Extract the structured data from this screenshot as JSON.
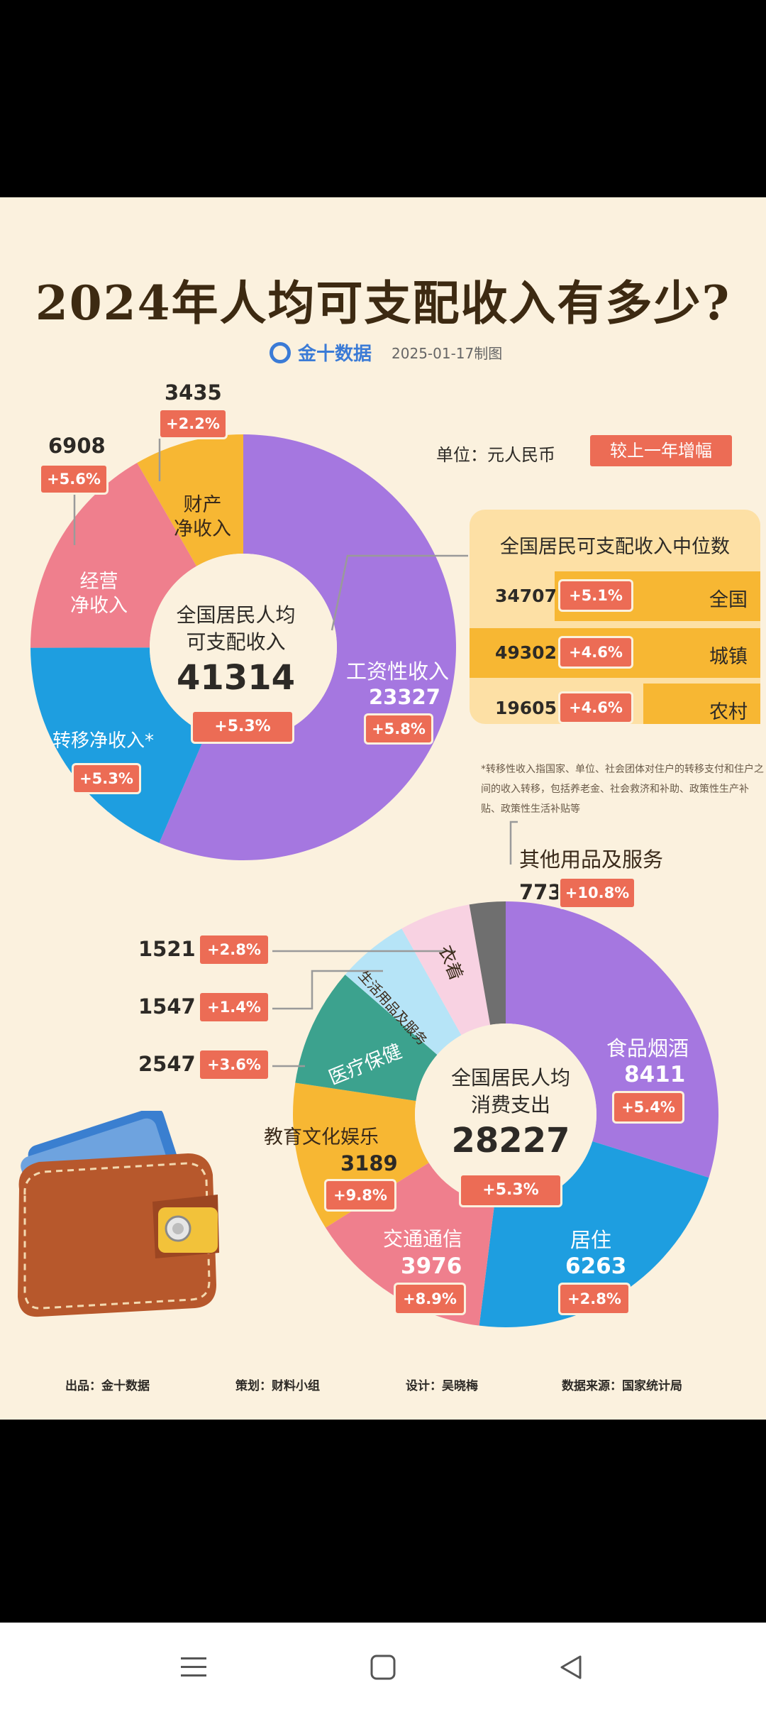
{
  "title": "2024年人均可支配收入有多少?",
  "brand": {
    "name": "金十数据",
    "date": "2025-01-17制图"
  },
  "legend": {
    "unit": "单位：元人民币",
    "growth_label": "较上一年增幅"
  },
  "income_center": {
    "line1": "全国居民人均",
    "line2": "可支配收入",
    "value": "41314",
    "pct": "+5.3%"
  },
  "median": {
    "title": "全国居民可支配收入中位数",
    "rows": [
      {
        "value": "34707",
        "pct": "+5.1%",
        "name": "全国"
      },
      {
        "value": "49302",
        "pct": "+4.6%",
        "name": "城镇"
      },
      {
        "value": "19605",
        "pct": "+4.6%",
        "name": "农村"
      }
    ]
  },
  "footnote": "*转移性收入指国家、单位、社会团体对住户的转移支付和住户之间的收入转移，包括养老金、社会救济和补助、政策性生产补贴、政策性生活补贴等",
  "spend_center": {
    "line1": "全国居民人均",
    "line2": "消费支出",
    "value": "28227",
    "pct": "+5.3%"
  },
  "footer": {
    "producer": "出品：金十数据",
    "planner": "策划：财料小组",
    "designer": "设计：吴晓梅",
    "source": "数据来源：国家统计局"
  },
  "colors": {
    "purple": "#a577e0",
    "blue": "#1e9ee0",
    "pink": "#ef7f8d",
    "orange": "#f7b733",
    "teal": "#3ca28e",
    "lightblue": "#b6e4f7",
    "lightpink": "#f8d2e2",
    "gray": "#6f6f6f",
    "tag": "#ec6c55",
    "background": "#fbf1de"
  },
  "chart_data": [
    {
      "type": "pie",
      "title": "全国居民人均可支配收入",
      "total": 41314,
      "total_growth": "+5.3%",
      "slices": [
        {
          "label": "工资性收入",
          "value": 23327,
          "growth": "+5.8%",
          "value_label": "23327"
        },
        {
          "label": "转移净收入*",
          "value": 7644,
          "growth": "+5.3%",
          "value_label": ""
        },
        {
          "label": "经营净收入",
          "value": 6908,
          "growth": "+5.6%",
          "value_label": "6908"
        },
        {
          "label": "财产净收入",
          "value": 3435,
          "growth": "+2.2%",
          "value_label": "3435"
        }
      ]
    },
    {
      "type": "pie",
      "title": "全国居民人均消费支出",
      "total": 28227,
      "total_growth": "+5.3%",
      "slices": [
        {
          "label": "食品烟酒",
          "value": 8411,
          "growth": "+5.4%",
          "value_label": "8411"
        },
        {
          "label": "居住",
          "value": 6263,
          "growth": "+2.8%",
          "value_label": "6263"
        },
        {
          "label": "交通通信",
          "value": 3976,
          "growth": "+8.9%",
          "value_label": "3976"
        },
        {
          "label": "教育文化娱乐",
          "value": 3189,
          "growth": "+9.8%",
          "value_label": "3189"
        },
        {
          "label": "医疗保健",
          "value": 2547,
          "growth": "+3.6%",
          "value_label": "2547"
        },
        {
          "label": "生活用品及服务",
          "value": 1547,
          "growth": "+1.4%",
          "value_label": "1547"
        },
        {
          "label": "衣着",
          "value": 1521,
          "growth": "+2.8%",
          "value_label": "1521"
        },
        {
          "label": "其他用品及服务",
          "value": 773,
          "growth": "+10.8%",
          "value_label": "773"
        }
      ]
    }
  ]
}
